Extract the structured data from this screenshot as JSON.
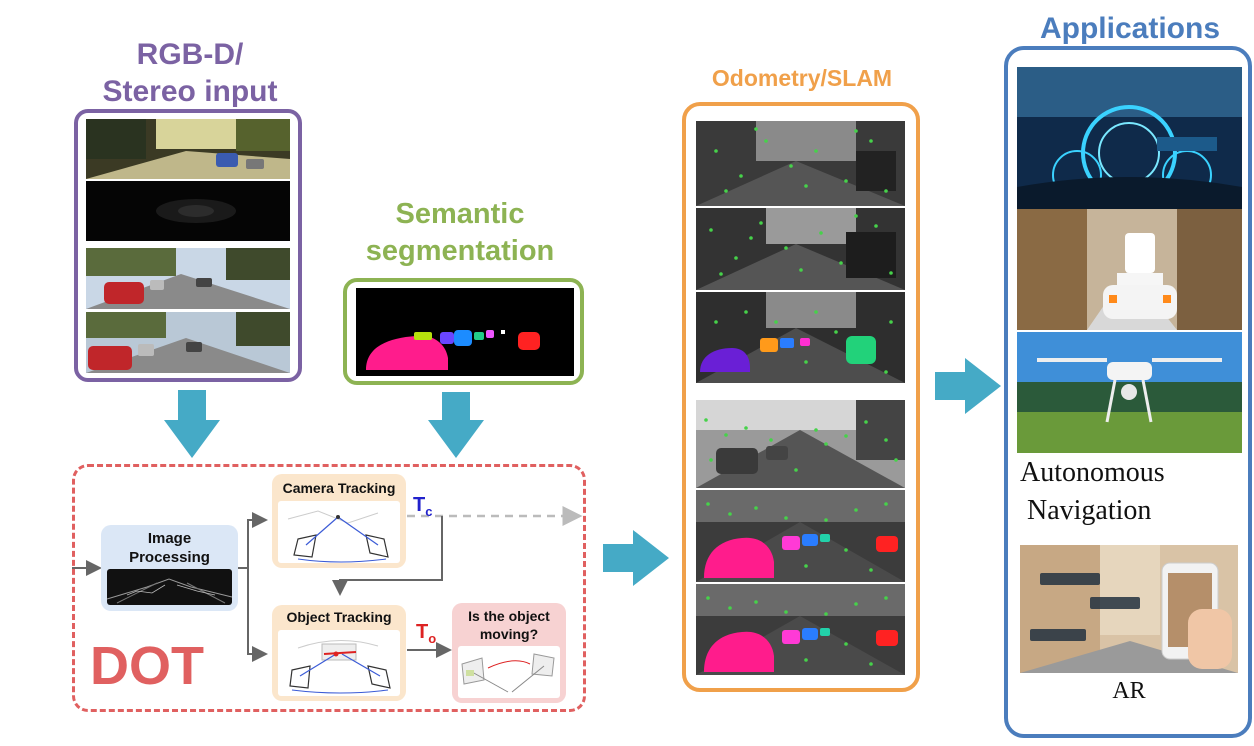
{
  "input_title": "RGB-D/\nStereo input",
  "segmentation_title": "Semantic\nsegmentation",
  "odometry_title": "Odometry/SLAM",
  "applications_title": "Applications",
  "dot_label": "DOT",
  "image_processing": "Image\nProcessing",
  "camera_tracking": "Camera Tracking",
  "object_tracking": "Object Tracking",
  "is_moving": "Is the object\nmoving?",
  "tc_symbol": "T",
  "tc_sub": "c",
  "to_symbol": "T",
  "to_sub": "o",
  "nav_label": "Autonomous\n Navigation",
  "ar_label": "AR",
  "colors": {
    "input": "#7b62a3",
    "segmentation": "#8db353",
    "odometry": "#f0a04a",
    "applications": "#4b7dbd",
    "dot": "#e06060",
    "arrow": "#45aac6",
    "camera_box": "#fbe6cc",
    "object_box": "#fbe6cc",
    "moving_box": "#f7d2d2",
    "image_box": "#dbe7f6",
    "tc": "#2222cc",
    "to": "#dd2222"
  }
}
